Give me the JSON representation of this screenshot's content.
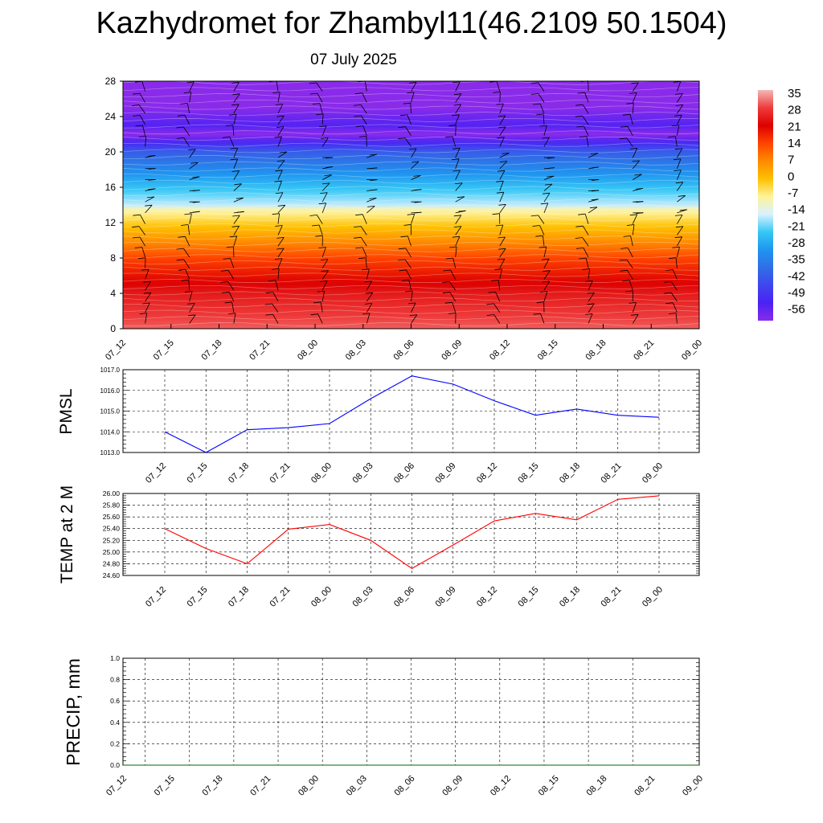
{
  "page": {
    "title": "Kazhydromet for Zhambyl11(46.2109 50.1504)",
    "subtitle": "07 July 2025"
  },
  "chart_data": [
    {
      "type": "heatmap",
      "id": "upper-air",
      "title": "",
      "xlabel": "",
      "ylabel": "",
      "x_ticks": [
        "07_12",
        "07_15",
        "07_18",
        "07_21",
        "08_00",
        "08_03",
        "08_06",
        "08_09",
        "08_12",
        "08_15",
        "08_18",
        "08_21",
        "09_00"
      ],
      "y_ticks": [
        0,
        4,
        8,
        12,
        16,
        20,
        24,
        28
      ],
      "ylim": [
        0,
        28
      ],
      "colorbar": {
        "labels": [
          "35",
          "28",
          "21",
          "14",
          "7",
          "0",
          "-7",
          "-14",
          "-21",
          "-28",
          "-35",
          "-42",
          "-49",
          "-56"
        ],
        "colors": [
          "#f5b8b8",
          "#ee3b3b",
          "#dd0000",
          "#ff4400",
          "#ff8a00",
          "#ffc000",
          "#fff39a",
          "#d9f1ff",
          "#36c8f5",
          "#1f95f0",
          "#2f6fe6",
          "#3f46ee",
          "#4a22f3",
          "#8a2bea"
        ]
      },
      "temperature_profile": [
        {
          "level": 0,
          "t": 30
        },
        {
          "level": 4,
          "t": 24
        },
        {
          "level": 8,
          "t": 14
        },
        {
          "level": 10,
          "t": 6
        },
        {
          "level": 12,
          "t": -2
        },
        {
          "level": 13.6,
          "t": -9
        },
        {
          "level": 14,
          "t": -15
        },
        {
          "level": 16,
          "t": -22
        },
        {
          "level": 18,
          "t": -30
        },
        {
          "level": 20,
          "t": -38
        },
        {
          "level": 21.5,
          "t": -52
        },
        {
          "level": 22,
          "t": -56
        },
        {
          "level": 23,
          "t": -50
        },
        {
          "level": 26,
          "t": -59
        },
        {
          "level": 28,
          "t": -62
        }
      ],
      "grid": false
    },
    {
      "type": "line",
      "id": "pmsl",
      "title": "",
      "xlabel": "",
      "ylabel": "PMSL",
      "categories": [
        "07_12",
        "07_15",
        "07_18",
        "07_21",
        "08_00",
        "08_03",
        "08_06",
        "08_09",
        "08_12",
        "08_15",
        "08_18",
        "08_21",
        "09_00"
      ],
      "y_tick_labels": [
        "1013.0",
        "1014.0",
        "1015.0",
        "1016.0",
        "1017.0"
      ],
      "ylim": [
        1013.0,
        1017.0
      ],
      "series": [
        {
          "color": "#0000ff",
          "values": [
            1014.0,
            1013.0,
            1014.1,
            1014.2,
            1014.4,
            1015.6,
            1016.7,
            1016.3,
            1015.5,
            1014.8,
            1015.1,
            1014.8,
            1014.7
          ]
        }
      ],
      "grid": true
    },
    {
      "type": "line",
      "id": "temp2m",
      "title": "",
      "xlabel": "",
      "ylabel": "TEMP at 2 M",
      "categories": [
        "07_12",
        "07_15",
        "07_18",
        "07_21",
        "08_00",
        "08_03",
        "08_06",
        "08_09",
        "08_12",
        "08_15",
        "08_18",
        "08_21",
        "09_00"
      ],
      "y_tick_labels": [
        "24.60",
        "24.80",
        "25.00",
        "25.20",
        "25.40",
        "25.60",
        "25.80",
        "26.00"
      ],
      "ylim": [
        24.6,
        26.0
      ],
      "series": [
        {
          "color": "#ff0000",
          "values": [
            25.4,
            25.06,
            24.8,
            25.39,
            25.47,
            25.2,
            24.72,
            25.12,
            25.53,
            25.66,
            25.55,
            25.9,
            25.96
          ]
        }
      ],
      "grid": true
    },
    {
      "type": "line",
      "id": "precip",
      "title": "",
      "xlabel": "",
      "ylabel": "PRECIP, mm",
      "categories": [
        "07_12",
        "07_15",
        "07_18",
        "07_21",
        "08_00",
        "08_03",
        "08_06",
        "08_09",
        "08_12",
        "08_15",
        "08_18",
        "08_21",
        "09_00"
      ],
      "y_tick_labels": [
        "0.0",
        "0.2",
        "0.4",
        "0.6",
        "0.8",
        "1.0"
      ],
      "ylim": [
        0.0,
        1.0
      ],
      "series": [
        {
          "color": "#006400",
          "values": [
            0,
            0,
            0,
            0,
            0,
            0,
            0,
            0,
            0,
            0,
            0,
            0,
            0
          ]
        }
      ],
      "grid": true
    }
  ]
}
